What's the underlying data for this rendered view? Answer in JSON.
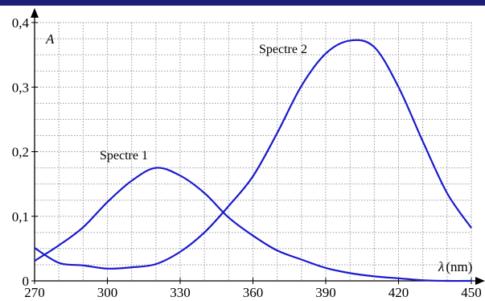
{
  "chart_data": {
    "type": "line",
    "xlabel": "λ",
    "xunit": "(nm)",
    "ylabel": "A",
    "xlim": [
      270,
      450
    ],
    "ylim": [
      0,
      0.4
    ],
    "x_ticks": [
      270,
      300,
      330,
      360,
      390,
      420,
      450
    ],
    "x_tick_labels": [
      "270",
      "300",
      "330",
      "360",
      "390",
      "420",
      "450"
    ],
    "y_ticks": [
      0,
      0.1,
      0.2,
      0.3,
      0.4
    ],
    "y_tick_labels": [
      "0",
      "0,1",
      "0,2",
      "0,3",
      "0,4"
    ],
    "grid": true,
    "grid_step_x": 10,
    "grid_step_y": 0.025,
    "colors": {
      "series": "#1a1acc",
      "grid": "#9a9a9a",
      "axis": "#000000",
      "topbar": "#1e1e7a"
    },
    "series": [
      {
        "name": "Spectre 1",
        "x": [
          270,
          280,
          290,
          300,
          310,
          320,
          330,
          340,
          350,
          360,
          370,
          380,
          390,
          400,
          410,
          420,
          430,
          440,
          450
        ],
        "y": [
          0.031,
          0.055,
          0.083,
          0.122,
          0.155,
          0.175,
          0.163,
          0.136,
          0.098,
          0.07,
          0.047,
          0.033,
          0.02,
          0.012,
          0.007,
          0.004,
          0.001,
          0.0,
          0.0
        ]
      },
      {
        "name": "Spectre 2",
        "x": [
          270,
          280,
          290,
          300,
          310,
          320,
          330,
          340,
          350,
          360,
          370,
          380,
          390,
          400,
          410,
          420,
          430,
          440,
          450
        ],
        "y": [
          0.051,
          0.028,
          0.024,
          0.019,
          0.021,
          0.026,
          0.045,
          0.075,
          0.116,
          0.162,
          0.229,
          0.302,
          0.352,
          0.372,
          0.362,
          0.3,
          0.216,
          0.136,
          0.082
        ]
      }
    ]
  }
}
